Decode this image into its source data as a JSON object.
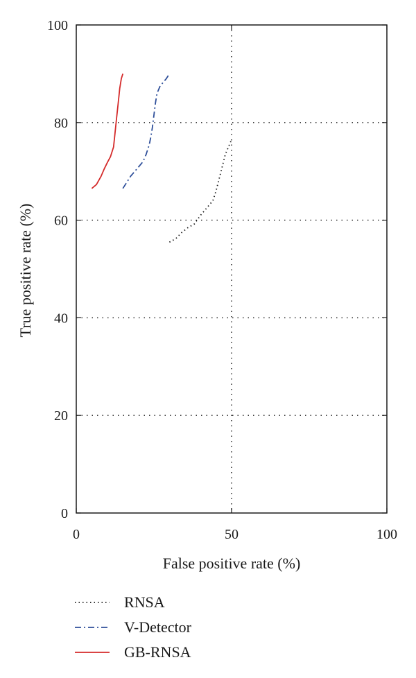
{
  "chart_data": {
    "type": "line",
    "xlabel": "False positive rate (%)",
    "ylabel": "True positive rate (%)",
    "xlim": [
      0,
      100
    ],
    "ylim": [
      0,
      100
    ],
    "xticks": [
      0,
      50,
      100
    ],
    "yticks": [
      0,
      20,
      40,
      60,
      80,
      100
    ],
    "grid": "dotted",
    "legend_position": "below",
    "series": [
      {
        "name": "RNSA",
        "style": "dotted",
        "color": "#1a1a1a",
        "x": [
          30,
          32,
          34,
          36,
          38,
          40,
          42,
          44,
          45,
          46,
          47,
          48,
          49,
          50
        ],
        "y": [
          55.5,
          56.2,
          57.5,
          58.5,
          59.2,
          61.0,
          62.5,
          64.0,
          66.0,
          68.5,
          71.0,
          73.5,
          75.0,
          76.5
        ]
      },
      {
        "name": "V-Detector",
        "style": "dashdot",
        "color": "#2e4f9a",
        "x": [
          15,
          16,
          17.5,
          19.5,
          21.5,
          22.5,
          23.5,
          24,
          24.5,
          25,
          25.5,
          26,
          27,
          29,
          30
        ],
        "y": [
          66.5,
          67.5,
          69.0,
          70.5,
          72.0,
          73.5,
          75.5,
          77.0,
          79.0,
          81.5,
          84.0,
          86.0,
          87.5,
          89.0,
          90.0
        ]
      },
      {
        "name": "GB-RNSA",
        "style": "solid",
        "color": "#d42a2a",
        "x": [
          5,
          6.5,
          8,
          9,
          10,
          11,
          12,
          12.5,
          13,
          13.5,
          14,
          14.5,
          15
        ],
        "y": [
          66.5,
          67.3,
          69.0,
          70.5,
          71.8,
          73.0,
          75.0,
          78.0,
          81.0,
          84.0,
          87.0,
          89.0,
          90.0
        ]
      }
    ]
  }
}
